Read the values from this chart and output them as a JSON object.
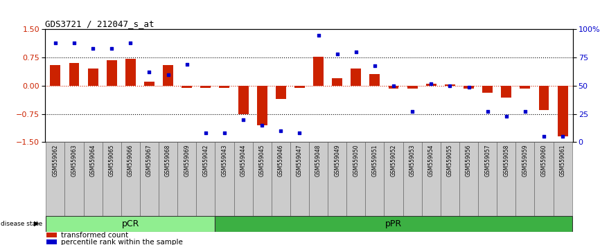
{
  "title": "GDS3721 / 212047_s_at",
  "samples": [
    "GSM559062",
    "GSM559063",
    "GSM559064",
    "GSM559065",
    "GSM559066",
    "GSM559067",
    "GSM559068",
    "GSM559069",
    "GSM559042",
    "GSM559043",
    "GSM559044",
    "GSM559045",
    "GSM559046",
    "GSM559047",
    "GSM559048",
    "GSM559049",
    "GSM559050",
    "GSM559051",
    "GSM559052",
    "GSM559053",
    "GSM559054",
    "GSM559055",
    "GSM559056",
    "GSM559057",
    "GSM559058",
    "GSM559059",
    "GSM559060",
    "GSM559061"
  ],
  "transformed_count": [
    0.55,
    0.6,
    0.45,
    0.68,
    0.72,
    0.1,
    0.55,
    -0.05,
    -0.05,
    -0.05,
    -0.75,
    -1.05,
    -0.35,
    -0.05,
    0.78,
    0.2,
    0.45,
    0.32,
    -0.08,
    -0.08,
    0.05,
    0.03,
    -0.08,
    -0.18,
    -0.32,
    -0.08,
    -0.65,
    -1.35
  ],
  "percentile_rank": [
    88,
    88,
    83,
    83,
    88,
    62,
    60,
    69,
    8,
    8,
    20,
    15,
    10,
    8,
    95,
    78,
    80,
    68,
    50,
    27,
    52,
    50,
    49,
    27,
    23,
    27,
    5,
    5
  ],
  "pCR_count": 9,
  "pPR_count": 19,
  "bar_color": "#cc2200",
  "dot_color": "#0000cc",
  "bg_color": "#ffffff",
  "zero_line_color": "#cc2200",
  "dotted_line_color": "#000000",
  "left_axis_color": "#cc2200",
  "right_axis_color": "#0000cc",
  "ylim": [
    -1.5,
    1.5
  ],
  "right_ylim": [
    0,
    100
  ],
  "yticks_left": [
    -1.5,
    -0.75,
    0.0,
    0.75,
    1.5
  ],
  "yticks_right": [
    0,
    25,
    50,
    75,
    100
  ],
  "ytick_labels_right": [
    "0",
    "25",
    "50",
    "75",
    "100%"
  ],
  "hlines": [
    0.75,
    -0.75
  ],
  "pCR_color": "#90ee90",
  "pPR_color": "#3cb043",
  "disease_state_label": "disease state",
  "legend_bar_label": "transformed count",
  "legend_dot_label": "percentile rank within the sample"
}
